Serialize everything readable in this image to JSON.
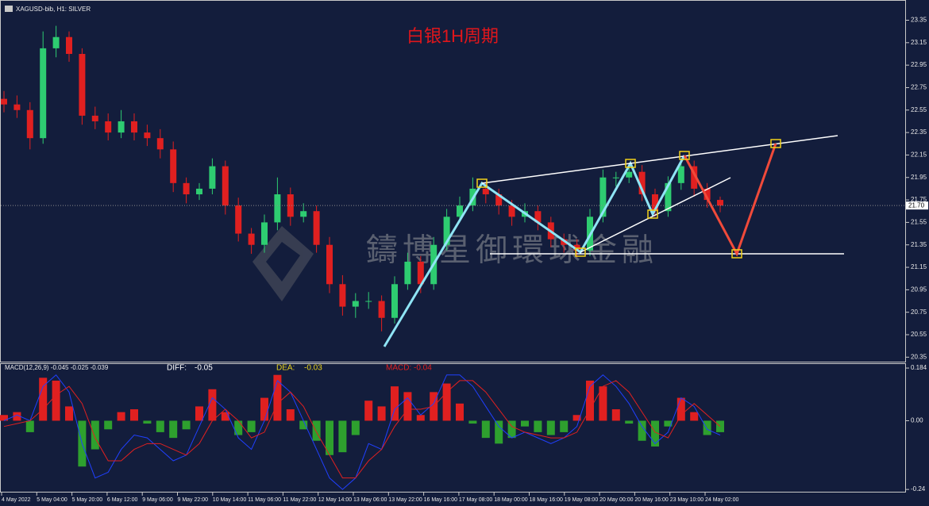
{
  "header": {
    "symbol": "XAGUSD-bib, H1:  SILVER"
  },
  "watermark": "鑄博星御環球金融",
  "x_labels": [
    "4 May 2022",
    "5 May 04:00",
    "5 May 20:00",
    "6 May 12:00",
    "9 May 06:00",
    "9 May 22:00",
    "10 May 14:00",
    "11 May 06:00",
    "11 May 22:00",
    "12 May 14:00",
    "13 May 06:00",
    "13 May 22:00",
    "16 May 16:00",
    "17 May 08:00",
    "18 May 00:00",
    "18 May 16:00",
    "19 May 08:00",
    "20 May 00:00",
    "20 May 16:00",
    "23 May 10:00",
    "24 May 02:00"
  ],
  "chart_data": [
    {
      "type": "candlestick",
      "title": "白银1H周期",
      "open": [
        22.65,
        22.6,
        22.55,
        22.3,
        23.1,
        23.2,
        23.05,
        22.5,
        22.45,
        22.35,
        22.45,
        22.35,
        22.3,
        22.2,
        21.9,
        21.8,
        21.85,
        22.05,
        21.7,
        21.45,
        21.35,
        21.55,
        21.8,
        21.6,
        21.65,
        21.35,
        21.0,
        20.8,
        20.85,
        20.85,
        20.7,
        21.0,
        21.2,
        21.0,
        21.35,
        21.6,
        21.7,
        21.85,
        21.8,
        21.7,
        21.6,
        21.65,
        21.55,
        21.4,
        21.35,
        21.3,
        21.6,
        21.95,
        21.95,
        22.0,
        21.8,
        21.65,
        21.9,
        22.05,
        21.85,
        21.75
      ],
      "high": [
        22.72,
        22.68,
        22.62,
        23.25,
        23.3,
        23.25,
        23.1,
        22.58,
        22.52,
        22.55,
        22.52,
        22.42,
        22.38,
        22.27,
        21.95,
        21.9,
        22.12,
        22.1,
        21.77,
        21.5,
        21.62,
        21.95,
        21.86,
        21.72,
        21.7,
        21.42,
        21.08,
        20.92,
        20.93,
        20.9,
        21.07,
        21.28,
        21.25,
        21.42,
        21.67,
        21.78,
        21.95,
        21.9,
        21.85,
        21.75,
        21.72,
        21.7,
        21.6,
        21.45,
        21.4,
        21.67,
        22.02,
        22.0,
        22.08,
        22.06,
        21.85,
        21.96,
        22.12,
        22.1,
        21.9,
        21.78
      ],
      "low": [
        22.53,
        22.48,
        22.2,
        22.25,
        23.02,
        22.98,
        22.42,
        22.38,
        22.28,
        22.3,
        22.28,
        22.23,
        22.12,
        21.82,
        21.72,
        21.75,
        21.8,
        21.62,
        21.38,
        21.27,
        21.28,
        21.48,
        21.52,
        21.55,
        21.28,
        20.92,
        20.72,
        20.7,
        20.78,
        20.58,
        20.65,
        20.95,
        20.92,
        20.95,
        21.3,
        21.55,
        21.65,
        21.72,
        21.62,
        21.52,
        21.55,
        21.48,
        21.33,
        21.28,
        21.24,
        21.25,
        21.55,
        21.87,
        21.9,
        21.74,
        21.6,
        21.6,
        21.84,
        21.78,
        21.68,
        21.64
      ],
      "close": [
        22.6,
        22.55,
        22.3,
        23.1,
        23.2,
        23.05,
        22.5,
        22.45,
        22.35,
        22.45,
        22.35,
        22.3,
        22.2,
        21.9,
        21.8,
        21.85,
        22.05,
        21.7,
        21.45,
        21.35,
        21.55,
        21.8,
        21.6,
        21.65,
        21.35,
        21.0,
        20.8,
        20.85,
        20.85,
        20.7,
        21.0,
        21.2,
        21.0,
        21.35,
        21.6,
        21.7,
        21.85,
        21.8,
        21.7,
        21.6,
        21.65,
        21.55,
        21.4,
        21.35,
        21.3,
        21.6,
        21.95,
        21.95,
        22.0,
        21.8,
        21.65,
        21.9,
        22.05,
        21.85,
        21.75,
        21.7
      ],
      "up_color": "#2ecc71",
      "down_color": "#e02020",
      "ylim": [
        20.31,
        23.53
      ],
      "yticks": [
        23.35,
        23.15,
        22.95,
        22.75,
        22.55,
        22.35,
        22.15,
        21.95,
        21.75,
        21.55,
        21.35,
        21.15,
        20.95,
        20.75,
        20.55,
        20.35
      ],
      "last_price": {
        "value": 21.7,
        "label": "21.70"
      }
    },
    {
      "type": "macd",
      "title": "MACD(12,26,9) -0.045 -0.025 -0.039",
      "readouts": [
        {
          "name": "DIFF:",
          "value": -0.05,
          "color": "#ffffff"
        },
        {
          "name": "DEA:",
          "value": -0.03,
          "color": "#e8d21d"
        },
        {
          "name": "MACD:",
          "value": -0.04,
          "color": "#e02020"
        }
      ],
      "histogram": [
        0.02,
        0.03,
        -0.04,
        0.15,
        0.14,
        0.05,
        -0.16,
        -0.1,
        -0.03,
        0.03,
        0.04,
        -0.01,
        -0.04,
        -0.06,
        -0.03,
        0.05,
        0.11,
        0.03,
        -0.05,
        -0.04,
        0.08,
        0.16,
        0.04,
        -0.03,
        -0.07,
        -0.12,
        -0.11,
        -0.05,
        0.07,
        0.05,
        0.12,
        0.1,
        0.02,
        0.1,
        0.13,
        0.06,
        -0.01,
        -0.06,
        -0.08,
        -0.06,
        -0.02,
        -0.04,
        -0.05,
        -0.04,
        0.02,
        0.14,
        0.12,
        0.04,
        -0.01,
        -0.07,
        -0.09,
        -0.02,
        0.08,
        0.03,
        -0.05,
        -0.04
      ],
      "up_color": "#e02020",
      "down_color": "#2ea02e",
      "series": [
        {
          "color": "#2040ff",
          "values": [
            0.0,
            0.02,
            0.0,
            0.12,
            0.16,
            0.1,
            -0.08,
            -0.2,
            -0.18,
            -0.1,
            -0.05,
            -0.06,
            -0.1,
            -0.14,
            -0.12,
            -0.02,
            0.08,
            0.04,
            -0.06,
            -0.1,
            0.0,
            0.14,
            0.1,
            0.0,
            -0.1,
            -0.2,
            -0.24,
            -0.2,
            -0.08,
            -0.1,
            0.04,
            0.08,
            0.02,
            0.06,
            0.16,
            0.16,
            0.12,
            0.05,
            -0.02,
            -0.06,
            -0.04,
            -0.06,
            -0.08,
            -0.06,
            -0.02,
            0.12,
            0.16,
            0.12,
            0.06,
            -0.02,
            -0.08,
            -0.04,
            0.08,
            0.05,
            -0.03,
            -0.05
          ]
        },
        {
          "color": "#e02020",
          "values": [
            -0.02,
            -0.01,
            0.0,
            0.04,
            0.09,
            0.12,
            0.06,
            -0.06,
            -0.14,
            -0.14,
            -0.1,
            -0.08,
            -0.08,
            -0.1,
            -0.12,
            -0.08,
            0.0,
            0.04,
            0.0,
            -0.06,
            -0.04,
            0.06,
            0.1,
            0.05,
            -0.04,
            -0.12,
            -0.2,
            -0.2,
            -0.14,
            -0.1,
            -0.02,
            0.04,
            0.04,
            0.05,
            0.1,
            0.14,
            0.14,
            0.1,
            0.04,
            -0.02,
            -0.04,
            -0.05,
            -0.06,
            -0.06,
            -0.04,
            0.04,
            0.12,
            0.14,
            0.1,
            0.03,
            -0.04,
            -0.06,
            0.02,
            0.06,
            0.02,
            -0.02
          ]
        }
      ],
      "ylim": [
        -0.248,
        0.198
      ],
      "yticks": [
        0.184,
        {
          "value": 0,
          "label": "0.00"
        },
        -0.24
      ]
    }
  ]
}
